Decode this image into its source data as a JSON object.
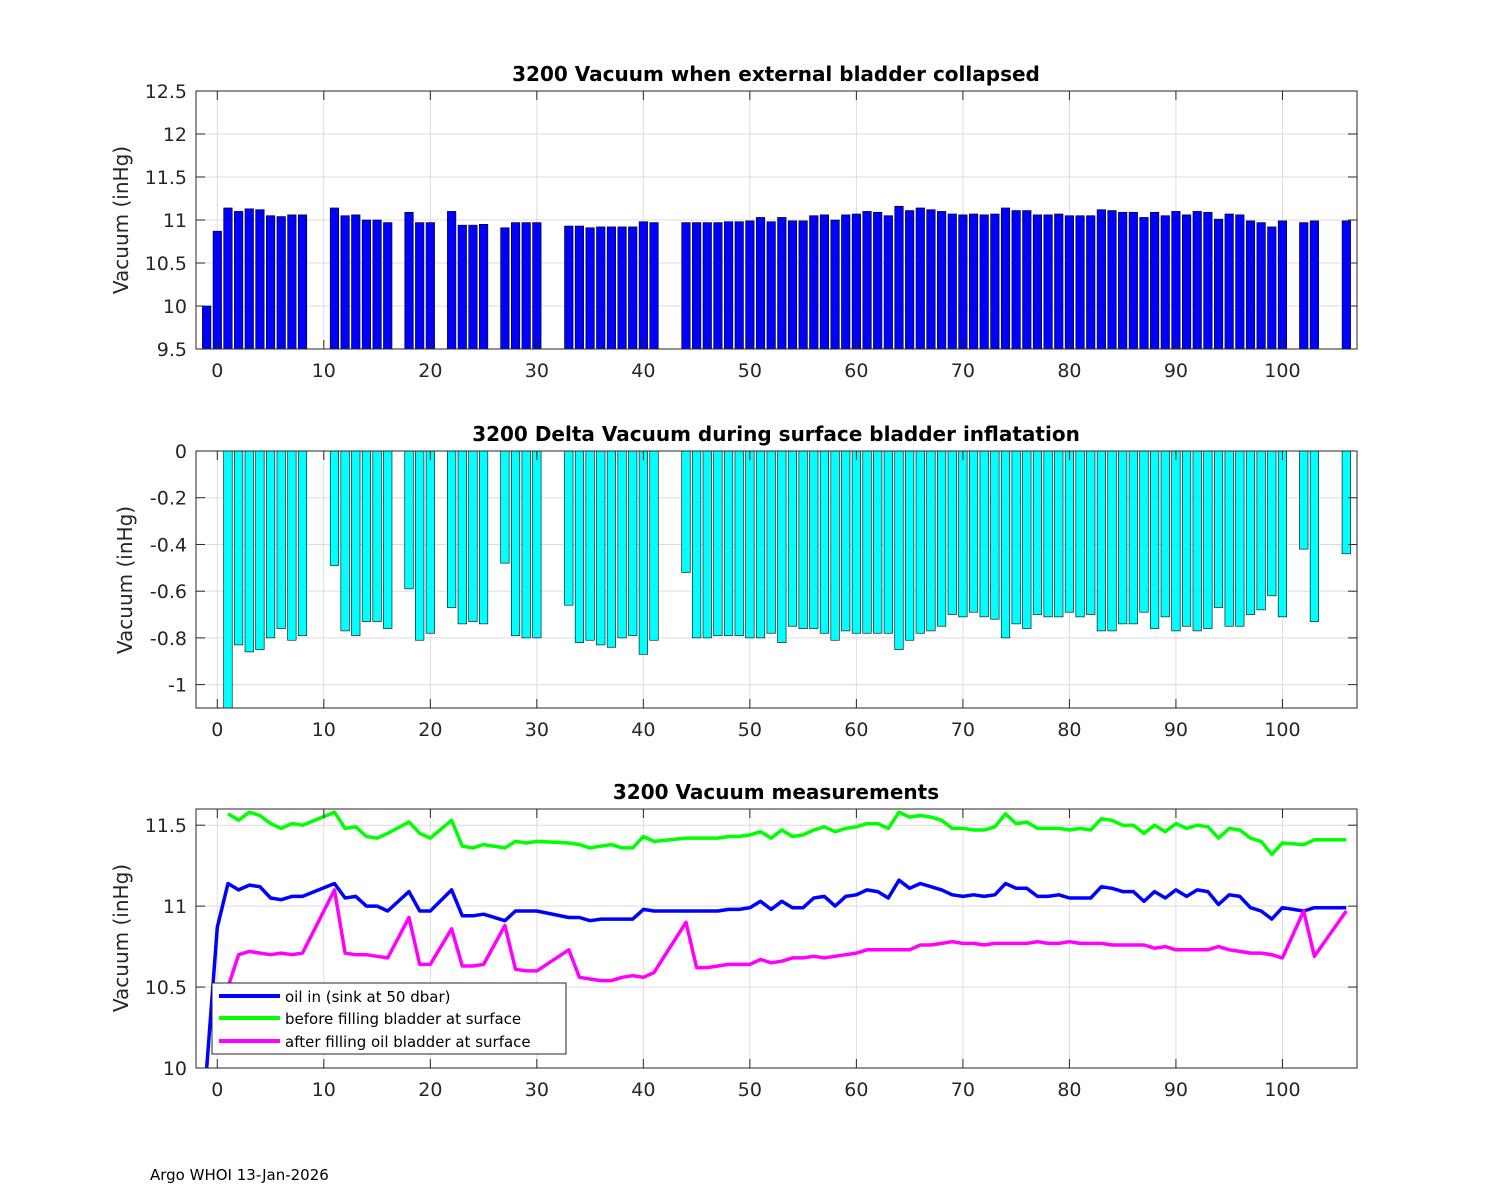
{
  "figure": {
    "background": "#ffffff",
    "axis_color": "#262626",
    "grid_color": "#dcdcdc"
  },
  "footer": {
    "text": "Argo WHOI 13-Jan-2026"
  },
  "chart_data": [
    {
      "type": "bar",
      "title": "3200 Vacuum when external bladder collapsed",
      "ylabel": "Vacuum (inHg)",
      "xlabel": "",
      "xlim": [
        -2,
        107
      ],
      "ylim": [
        9.5,
        12.5
      ],
      "xticks": [
        0,
        10,
        20,
        30,
        40,
        50,
        60,
        70,
        80,
        90,
        100
      ],
      "yticks": [
        9.5,
        10,
        10.5,
        11,
        11.5,
        12,
        12.5
      ],
      "ytick_labels": [
        "9.5",
        "10",
        "10.5",
        "11",
        "11.5",
        "12",
        "12.5"
      ],
      "grid": true,
      "color": "#0000ff",
      "x": [
        -1,
        0,
        1,
        2,
        3,
        4,
        5,
        6,
        7,
        8,
        10,
        11,
        12,
        13,
        14,
        15,
        16,
        18,
        19,
        20,
        22,
        23,
        24,
        25,
        27,
        28,
        29,
        30,
        33,
        34,
        35,
        36,
        37,
        38,
        39,
        40,
        41,
        44,
        45,
        46,
        47,
        48,
        49,
        50,
        51,
        52,
        53,
        54,
        55,
        56,
        57,
        58,
        59,
        60,
        61,
        62,
        63,
        64,
        65,
        66,
        67,
        68,
        69,
        70,
        71,
        72,
        73,
        74,
        75,
        76,
        77,
        78,
        79,
        80,
        81,
        82,
        83,
        84,
        85,
        86,
        87,
        88,
        89,
        90,
        91,
        92,
        93,
        94,
        95,
        96,
        97,
        98,
        99,
        100,
        102,
        103,
        106
      ],
      "values": [
        10.0,
        10.87,
        11.14,
        11.1,
        11.13,
        11.12,
        11.05,
        11.04,
        11.06,
        11.06,
        null,
        11.14,
        11.05,
        11.06,
        11.0,
        11.0,
        10.97,
        11.09,
        10.97,
        10.97,
        11.1,
        10.94,
        10.94,
        10.95,
        10.91,
        10.97,
        10.97,
        10.97,
        10.93,
        10.93,
        10.91,
        10.92,
        10.92,
        10.92,
        10.92,
        10.98,
        10.97,
        10.97,
        10.97,
        10.97,
        10.97,
        10.98,
        10.98,
        10.99,
        11.03,
        10.98,
        11.03,
        10.99,
        10.99,
        11.05,
        11.06,
        11.0,
        11.06,
        11.07,
        11.1,
        11.09,
        11.05,
        11.16,
        11.11,
        11.14,
        11.12,
        11.1,
        11.07,
        11.06,
        11.07,
        11.06,
        11.07,
        11.14,
        11.11,
        11.11,
        11.06,
        11.06,
        11.07,
        11.05,
        11.05,
        11.05,
        11.12,
        11.11,
        11.09,
        11.09,
        11.03,
        11.09,
        11.05,
        11.1,
        11.06,
        11.1,
        11.09,
        11.01,
        11.07,
        11.06,
        10.99,
        10.97,
        10.92,
        10.99,
        10.97,
        10.99,
        10.99
      ]
    },
    {
      "type": "bar",
      "title": "3200 Delta Vacuum during surface bladder inflatation",
      "ylabel": "Vacuum (inHg)",
      "xlabel": "",
      "xlim": [
        -2,
        107
      ],
      "ylim": [
        -1.1,
        0
      ],
      "xticks": [
        0,
        10,
        20,
        30,
        40,
        50,
        60,
        70,
        80,
        90,
        100
      ],
      "yticks": [
        -1,
        -0.8,
        -0.6,
        -0.4,
        -0.2,
        0
      ],
      "ytick_labels": [
        "-1",
        "-0.8",
        "-0.6",
        "-0.4",
        "-0.2",
        "0"
      ],
      "grid": true,
      "color": "#00ffff",
      "x": [
        1,
        2,
        3,
        4,
        5,
        6,
        7,
        8,
        11,
        12,
        13,
        14,
        15,
        16,
        18,
        19,
        20,
        22,
        23,
        24,
        25,
        27,
        28,
        29,
        30,
        33,
        34,
        35,
        36,
        37,
        38,
        39,
        40,
        41,
        44,
        45,
        46,
        47,
        48,
        49,
        50,
        51,
        52,
        53,
        54,
        55,
        56,
        57,
        58,
        59,
        60,
        61,
        62,
        63,
        64,
        65,
        66,
        67,
        68,
        69,
        70,
        71,
        72,
        73,
        74,
        75,
        76,
        77,
        78,
        79,
        80,
        81,
        82,
        83,
        84,
        85,
        86,
        87,
        88,
        89,
        90,
        91,
        92,
        93,
        94,
        95,
        96,
        97,
        98,
        99,
        100,
        102,
        103,
        106
      ],
      "values": [
        -1.1,
        -0.83,
        -0.86,
        -0.85,
        -0.8,
        -0.76,
        -0.81,
        -0.79,
        -0.49,
        -0.77,
        -0.79,
        -0.73,
        -0.73,
        -0.76,
        -0.59,
        -0.81,
        -0.78,
        -0.67,
        -0.74,
        -0.73,
        -0.74,
        -0.48,
        -0.79,
        -0.8,
        -0.8,
        -0.66,
        -0.82,
        -0.81,
        -0.83,
        -0.84,
        -0.8,
        -0.79,
        -0.87,
        -0.81,
        -0.52,
        -0.8,
        -0.8,
        -0.79,
        -0.79,
        -0.79,
        -0.8,
        -0.8,
        -0.78,
        -0.82,
        -0.75,
        -0.76,
        -0.76,
        -0.78,
        -0.81,
        -0.77,
        -0.78,
        -0.78,
        -0.78,
        -0.78,
        -0.85,
        -0.81,
        -0.78,
        -0.77,
        -0.75,
        -0.7,
        -0.71,
        -0.69,
        -0.71,
        -0.72,
        -0.8,
        -0.74,
        -0.76,
        -0.7,
        -0.71,
        -0.71,
        -0.69,
        -0.71,
        -0.7,
        -0.77,
        -0.77,
        -0.74,
        -0.74,
        -0.69,
        -0.76,
        -0.71,
        -0.77,
        -0.75,
        -0.77,
        -0.76,
        -0.67,
        -0.75,
        -0.75,
        -0.7,
        -0.68,
        -0.62,
        -0.71,
        -0.42,
        -0.73,
        -0.44
      ]
    },
    {
      "type": "line",
      "title": "3200 Vacuum measurements",
      "ylabel": "Vacuum (inHg)",
      "xlabel": "",
      "xlim": [
        -2,
        107
      ],
      "ylim": [
        10,
        11.6
      ],
      "xticks": [
        0,
        10,
        20,
        30,
        40,
        50,
        60,
        70,
        80,
        90,
        100
      ],
      "yticks": [
        10,
        10.5,
        11,
        11.5
      ],
      "ytick_labels": [
        "10",
        "10.5",
        "11",
        "11.5"
      ],
      "grid": true,
      "legend": "bottom-left",
      "series": [
        {
          "name": "oil in (sink at 50 dbar)",
          "color": "#0000ff",
          "x": [
            -1,
            0,
            1,
            2,
            3,
            4,
            5,
            6,
            7,
            8,
            11,
            12,
            13,
            14,
            15,
            16,
            18,
            19,
            20,
            22,
            23,
            24,
            25,
            27,
            28,
            29,
            30,
            33,
            34,
            35,
            36,
            37,
            38,
            39,
            40,
            41,
            44,
            45,
            46,
            47,
            48,
            49,
            50,
            51,
            52,
            53,
            54,
            55,
            56,
            57,
            58,
            59,
            60,
            61,
            62,
            63,
            64,
            65,
            66,
            67,
            68,
            69,
            70,
            71,
            72,
            73,
            74,
            75,
            76,
            77,
            78,
            79,
            80,
            81,
            82,
            83,
            84,
            85,
            86,
            87,
            88,
            89,
            90,
            91,
            92,
            93,
            94,
            95,
            96,
            97,
            98,
            99,
            100,
            102,
            103,
            106
          ],
          "values": [
            10.0,
            10.87,
            11.14,
            11.1,
            11.13,
            11.12,
            11.05,
            11.04,
            11.06,
            11.06,
            11.14,
            11.05,
            11.06,
            11.0,
            11.0,
            10.97,
            11.09,
            10.97,
            10.97,
            11.1,
            10.94,
            10.94,
            10.95,
            10.91,
            10.97,
            10.97,
            10.97,
            10.93,
            10.93,
            10.91,
            10.92,
            10.92,
            10.92,
            10.92,
            10.98,
            10.97,
            10.97,
            10.97,
            10.97,
            10.97,
            10.98,
            10.98,
            10.99,
            11.03,
            10.98,
            11.03,
            10.99,
            10.99,
            11.05,
            11.06,
            11.0,
            11.06,
            11.07,
            11.1,
            11.09,
            11.05,
            11.16,
            11.11,
            11.14,
            11.12,
            11.1,
            11.07,
            11.06,
            11.07,
            11.06,
            11.07,
            11.14,
            11.11,
            11.11,
            11.06,
            11.06,
            11.07,
            11.05,
            11.05,
            11.05,
            11.12,
            11.11,
            11.09,
            11.09,
            11.03,
            11.09,
            11.05,
            11.1,
            11.06,
            11.1,
            11.09,
            11.01,
            11.07,
            11.06,
            10.99,
            10.97,
            10.92,
            10.99,
            10.97,
            10.99,
            10.99
          ]
        },
        {
          "name": "before filling bladder at surface",
          "color": "#00ff00",
          "x": [
            1,
            2,
            3,
            4,
            5,
            6,
            7,
            8,
            11,
            12,
            13,
            14,
            15,
            16,
            18,
            19,
            20,
            22,
            23,
            24,
            25,
            27,
            28,
            29,
            30,
            33,
            34,
            35,
            36,
            37,
            38,
            39,
            40,
            41,
            44,
            45,
            46,
            47,
            48,
            49,
            50,
            51,
            52,
            53,
            54,
            55,
            56,
            57,
            58,
            59,
            60,
            61,
            62,
            63,
            64,
            65,
            66,
            67,
            68,
            69,
            70,
            71,
            72,
            73,
            74,
            75,
            76,
            77,
            78,
            79,
            80,
            81,
            82,
            83,
            84,
            85,
            86,
            87,
            88,
            89,
            90,
            91,
            92,
            93,
            94,
            95,
            96,
            97,
            98,
            99,
            100,
            102,
            103,
            106
          ],
          "values": [
            11.57,
            11.53,
            11.58,
            11.56,
            11.51,
            11.48,
            11.51,
            11.5,
            11.58,
            11.48,
            11.49,
            11.43,
            11.42,
            11.45,
            11.52,
            11.45,
            11.42,
            11.53,
            11.37,
            11.36,
            11.38,
            11.36,
            11.4,
            11.39,
            11.4,
            11.39,
            11.38,
            11.36,
            11.37,
            11.38,
            11.36,
            11.36,
            11.43,
            11.4,
            11.42,
            11.42,
            11.42,
            11.42,
            11.43,
            11.43,
            11.44,
            11.46,
            11.42,
            11.47,
            11.43,
            11.44,
            11.47,
            11.49,
            11.46,
            11.48,
            11.49,
            11.51,
            11.51,
            11.48,
            11.58,
            11.55,
            11.56,
            11.55,
            11.53,
            11.48,
            11.48,
            11.47,
            11.47,
            11.49,
            11.57,
            11.51,
            11.52,
            11.48,
            11.48,
            11.48,
            11.47,
            11.48,
            11.47,
            11.54,
            11.53,
            11.5,
            11.5,
            11.45,
            11.5,
            11.46,
            11.51,
            11.48,
            11.5,
            11.49,
            11.42,
            11.48,
            11.47,
            11.42,
            11.4,
            11.32,
            11.39,
            11.38,
            11.41,
            11.41
          ]
        },
        {
          "name": "after filling oil bladder at surface",
          "color": "#ff00ff",
          "x": [
            1,
            2,
            3,
            4,
            5,
            6,
            7,
            8,
            11,
            12,
            13,
            14,
            15,
            16,
            18,
            19,
            20,
            22,
            23,
            24,
            25,
            27,
            28,
            29,
            30,
            33,
            34,
            35,
            36,
            37,
            38,
            39,
            40,
            41,
            44,
            45,
            46,
            47,
            48,
            49,
            50,
            51,
            52,
            53,
            54,
            55,
            56,
            57,
            58,
            59,
            60,
            61,
            62,
            63,
            64,
            65,
            66,
            67,
            68,
            69,
            70,
            71,
            72,
            73,
            74,
            75,
            76,
            77,
            78,
            79,
            80,
            81,
            82,
            83,
            84,
            85,
            86,
            87,
            88,
            89,
            90,
            91,
            92,
            93,
            94,
            95,
            96,
            97,
            98,
            99,
            100,
            102,
            103,
            106
          ],
          "values": [
            10.5,
            10.7,
            10.72,
            10.71,
            10.7,
            10.71,
            10.7,
            10.71,
            11.1,
            10.71,
            10.7,
            10.7,
            10.69,
            10.68,
            10.93,
            10.64,
            10.64,
            10.86,
            10.63,
            10.63,
            10.64,
            10.88,
            10.61,
            10.6,
            10.6,
            10.73,
            10.56,
            10.55,
            10.54,
            10.54,
            10.56,
            10.57,
            10.56,
            10.59,
            10.9,
            10.62,
            10.62,
            10.63,
            10.64,
            10.64,
            10.64,
            10.67,
            10.65,
            10.66,
            10.68,
            10.68,
            10.69,
            10.68,
            10.69,
            10.7,
            10.71,
            10.73,
            10.73,
            10.73,
            10.73,
            10.73,
            10.76,
            10.76,
            10.77,
            10.78,
            10.77,
            10.77,
            10.76,
            10.77,
            10.77,
            10.77,
            10.77,
            10.78,
            10.77,
            10.77,
            10.78,
            10.77,
            10.77,
            10.77,
            10.76,
            10.76,
            10.76,
            10.76,
            10.74,
            10.75,
            10.73,
            10.73,
            10.73,
            10.73,
            10.75,
            10.73,
            10.72,
            10.71,
            10.71,
            10.7,
            10.68,
            10.97,
            10.69,
            10.97
          ]
        }
      ]
    }
  ]
}
